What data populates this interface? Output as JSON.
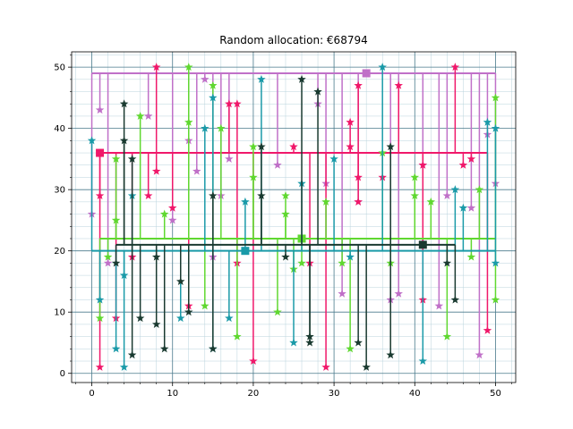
{
  "chart_data": {
    "type": "scatter",
    "title": "Random allocation: €68794",
    "xlabel": "",
    "ylabel": "",
    "xlim": [
      -2.5,
      52.5
    ],
    "ylim": [
      -1.5,
      52.5
    ],
    "xticks": [
      0,
      10,
      20,
      30,
      40,
      50
    ],
    "yticks": [
      0,
      10,
      20,
      30,
      40,
      50
    ],
    "grid": true,
    "grid_major_color": "#4a7a8c",
    "grid_minor_color": "#b9d3dc",
    "marker": "star",
    "series": [
      {
        "color": "#c070c8",
        "hub": [
          34,
          49
        ],
        "trunk": [
          0,
          50,
          49
        ],
        "points": [
          [
            0,
            26
          ],
          [
            1,
            43
          ],
          [
            2,
            18
          ],
          [
            7,
            42
          ],
          [
            10,
            25
          ],
          [
            12,
            38
          ],
          [
            13,
            33
          ],
          [
            14,
            48
          ],
          [
            15,
            19
          ],
          [
            16,
            29
          ],
          [
            17,
            35
          ],
          [
            23,
            34
          ],
          [
            28,
            44
          ],
          [
            29,
            31
          ],
          [
            31,
            13
          ],
          [
            33,
            28
          ],
          [
            37,
            12
          ],
          [
            38,
            13
          ],
          [
            41,
            34
          ],
          [
            43,
            11
          ],
          [
            44,
            29
          ],
          [
            47,
            27
          ],
          [
            48,
            3
          ],
          [
            49,
            39
          ],
          [
            50,
            31
          ]
        ]
      },
      {
        "color": "#f0186a",
        "hub": [
          1,
          36
        ],
        "trunk": [
          1,
          49,
          36
        ],
        "points": [
          [
            1,
            1
          ],
          [
            1,
            29
          ],
          [
            3,
            9
          ],
          [
            5,
            19
          ],
          [
            7,
            29
          ],
          [
            8,
            50
          ],
          [
            8,
            33
          ],
          [
            10,
            27
          ],
          [
            12,
            11
          ],
          [
            17,
            44
          ],
          [
            18,
            44
          ],
          [
            18,
            18
          ],
          [
            20,
            2
          ],
          [
            25,
            37
          ],
          [
            27,
            18
          ],
          [
            29,
            1
          ],
          [
            32,
            41
          ],
          [
            32,
            37
          ],
          [
            33,
            47
          ],
          [
            33,
            32
          ],
          [
            33,
            28
          ],
          [
            36,
            32
          ],
          [
            38,
            47
          ],
          [
            41,
            12
          ],
          [
            41,
            34
          ],
          [
            45,
            50
          ],
          [
            46,
            34
          ],
          [
            47,
            35
          ],
          [
            49,
            7
          ]
        ]
      },
      {
        "color": "#60d830",
        "hub": [
          26,
          22
        ],
        "trunk": [
          1,
          50,
          22
        ],
        "points": [
          [
            1,
            9
          ],
          [
            2,
            19
          ],
          [
            3,
            35
          ],
          [
            3,
            25
          ],
          [
            6,
            42
          ],
          [
            9,
            26
          ],
          [
            12,
            50
          ],
          [
            12,
            41
          ],
          [
            14,
            11
          ],
          [
            15,
            47
          ],
          [
            16,
            40
          ],
          [
            18,
            6
          ],
          [
            20,
            32
          ],
          [
            20,
            37
          ],
          [
            23,
            10
          ],
          [
            24,
            29
          ],
          [
            24,
            26
          ],
          [
            25,
            17
          ],
          [
            26,
            18
          ],
          [
            29,
            28
          ],
          [
            31,
            18
          ],
          [
            32,
            4
          ],
          [
            36,
            36
          ],
          [
            37,
            18
          ],
          [
            40,
            32
          ],
          [
            40,
            29
          ],
          [
            42,
            28
          ],
          [
            44,
            6
          ],
          [
            47,
            19
          ],
          [
            48,
            30
          ],
          [
            50,
            45
          ],
          [
            50,
            12
          ]
        ]
      },
      {
        "color": "#1a9aa8",
        "hub": [
          19,
          20
        ],
        "trunk": [
          0,
          50,
          20
        ],
        "points": [
          [
            0,
            38
          ],
          [
            1,
            12
          ],
          [
            3,
            4
          ],
          [
            4,
            16
          ],
          [
            4,
            1
          ],
          [
            5,
            29
          ],
          [
            11,
            9
          ],
          [
            14,
            40
          ],
          [
            15,
            45
          ],
          [
            15,
            4
          ],
          [
            17,
            9
          ],
          [
            19,
            28
          ],
          [
            21,
            48
          ],
          [
            25,
            5
          ],
          [
            26,
            31
          ],
          [
            30,
            35
          ],
          [
            32,
            19
          ],
          [
            36,
            50
          ],
          [
            41,
            2
          ],
          [
            45,
            30
          ],
          [
            46,
            27
          ],
          [
            49,
            41
          ],
          [
            50,
            40
          ],
          [
            50,
            18
          ]
        ]
      },
      {
        "color": "#1a3a30",
        "hub": [
          41,
          21
        ],
        "trunk": [
          3,
          45,
          21
        ],
        "points": [
          [
            3,
            18
          ],
          [
            4,
            44
          ],
          [
            4,
            38
          ],
          [
            5,
            35
          ],
          [
            5,
            3
          ],
          [
            6,
            9
          ],
          [
            8,
            19
          ],
          [
            8,
            8
          ],
          [
            9,
            4
          ],
          [
            11,
            15
          ],
          [
            12,
            10
          ],
          [
            15,
            29
          ],
          [
            15,
            4
          ],
          [
            21,
            37
          ],
          [
            21,
            29
          ],
          [
            24,
            19
          ],
          [
            26,
            48
          ],
          [
            27,
            6
          ],
          [
            27,
            5
          ],
          [
            28,
            46
          ],
          [
            33,
            5
          ],
          [
            34,
            1
          ],
          [
            37,
            37
          ],
          [
            37,
            3
          ],
          [
            44,
            18
          ],
          [
            45,
            12
          ]
        ]
      }
    ]
  }
}
